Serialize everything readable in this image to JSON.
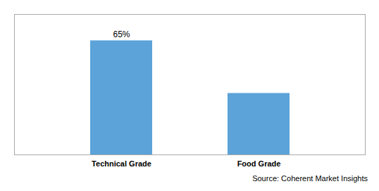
{
  "chart_data": {
    "type": "bar",
    "categories": [
      "Technical Grade",
      "Food Grade"
    ],
    "values": [
      65,
      35
    ],
    "color": "#5BA3D9",
    "ylim": [
      0,
      80
    ],
    "data_labels": true,
    "value_labels": [
      "65%",
      null
    ],
    "tick_labels": "x",
    "annotations": [
      "Source: Coherent Market Insights"
    ]
  }
}
